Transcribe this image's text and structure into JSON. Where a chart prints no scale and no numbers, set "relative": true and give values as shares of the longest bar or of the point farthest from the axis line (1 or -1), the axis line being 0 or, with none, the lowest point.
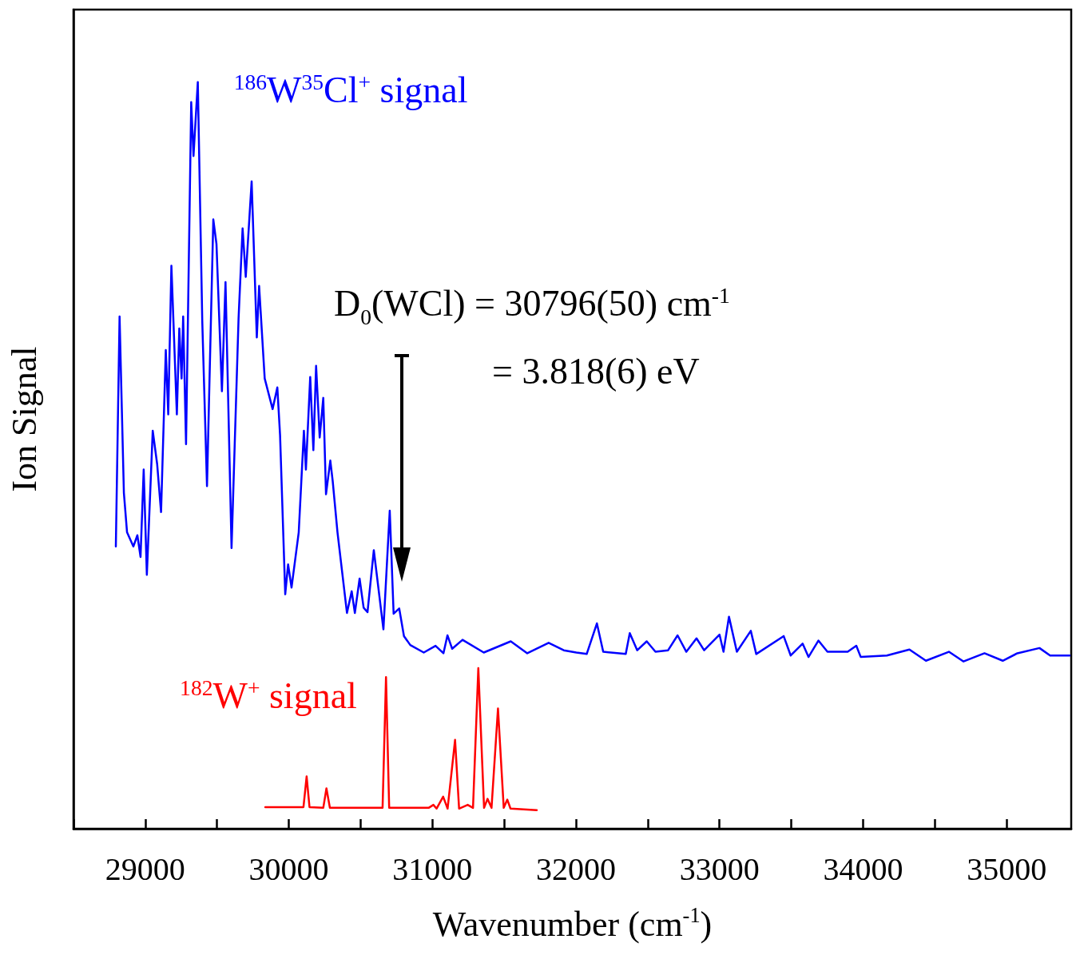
{
  "chart_data": {
    "type": "line",
    "relative": true,
    "marker": "none",
    "xlabel": "Wavenumber (cm$^{-1}$)",
    "ylabel": "Ion Signal",
    "xlim": [
      28500,
      35450
    ],
    "xticks": [
      {
        "value": 28500,
        "label": null
      },
      29000,
      {
        "value": 29500,
        "label": null
      },
      30000,
      {
        "value": 30500,
        "label": null
      },
      31000,
      {
        "value": 31500,
        "label": null
      },
      32000,
      {
        "value": 32500,
        "label": null
      },
      33000,
      {
        "value": 33500,
        "label": null
      },
      34000,
      {
        "value": 34500,
        "label": null
      },
      35000
    ],
    "annotations": [
      "D$_{0}$(WCl) =  30796(50) cm$^{-1}$",
      "=  3.818(6) eV"
    ],
    "series": [
      {
        "name": "$^{186}$W$^{35}$Cl$^{+}$ signal",
        "color": "#0000ff",
        "x": [
          28795,
          28821,
          28851,
          28873,
          28917,
          28945,
          28967,
          28989,
          29011,
          29052,
          29083,
          29110,
          29143,
          29160,
          29182,
          29220,
          29237,
          29253,
          29264,
          29284,
          29320,
          29336,
          29366,
          29397,
          29430,
          29474,
          29496,
          29534,
          29559,
          29601,
          29650,
          29678,
          29700,
          29741,
          29777,
          29793,
          29832,
          29887,
          29920,
          29939,
          29975,
          29995,
          30019,
          30069,
          30105,
          30119,
          30149,
          30171,
          30190,
          30215,
          30240,
          30259,
          30289,
          30306,
          30339,
          30405,
          30438,
          30460,
          30493,
          30521,
          30548,
          30592,
          30659,
          30703,
          30730,
          30769,
          30802,
          30846,
          30940,
          31022,
          31077,
          31105,
          31138,
          31210,
          31358,
          31546,
          31661,
          31810,
          31915,
          32003,
          32075,
          32146,
          32190,
          32347,
          32375,
          32427,
          32493,
          32554,
          32642,
          32708,
          32769,
          32840,
          32893,
          33000,
          33028,
          33066,
          33121,
          33218,
          33256,
          33447,
          33496,
          33579,
          33620,
          33689,
          33752,
          33893,
          33953,
          33984,
          34166,
          34323,
          34438,
          34598,
          34700,
          34846,
          34973,
          35075,
          35229,
          35303,
          35439
        ],
        "values": [
          0.378,
          0.686,
          0.45,
          0.397,
          0.378,
          0.393,
          0.364,
          0.481,
          0.34,
          0.533,
          0.488,
          0.424,
          0.641,
          0.555,
          0.754,
          0.555,
          0.67,
          0.603,
          0.686,
          0.515,
          0.973,
          0.901,
          1.0,
          0.68,
          0.459,
          0.816,
          0.783,
          0.586,
          0.732,
          0.376,
          0.684,
          0.804,
          0.739,
          0.867,
          0.658,
          0.727,
          0.603,
          0.562,
          0.591,
          0.527,
          0.314,
          0.354,
          0.323,
          0.397,
          0.533,
          0.481,
          0.605,
          0.507,
          0.62,
          0.524,
          0.577,
          0.448,
          0.493,
          0.465,
          0.397,
          0.289,
          0.318,
          0.289,
          0.335,
          0.296,
          0.29,
          0.373,
          0.267,
          0.426,
          0.288,
          0.295,
          0.258,
          0.246,
          0.236,
          0.245,
          0.235,
          0.259,
          0.241,
          0.253,
          0.236,
          0.251,
          0.235,
          0.249,
          0.239,
          0.236,
          0.234,
          0.275,
          0.237,
          0.234,
          0.262,
          0.239,
          0.251,
          0.237,
          0.239,
          0.259,
          0.237,
          0.255,
          0.239,
          0.26,
          0.237,
          0.284,
          0.237,
          0.265,
          0.234,
          0.258,
          0.232,
          0.248,
          0.23,
          0.252,
          0.237,
          0.237,
          0.245,
          0.23,
          0.232,
          0.24,
          0.225,
          0.237,
          0.224,
          0.235,
          0.225,
          0.235,
          0.242,
          0.232,
          0.232
        ]
      },
      {
        "name": "$^{182}$W$^{+}$ signal",
        "color": "#ff0000",
        "x": [
          29836,
          30102,
          30124,
          30144,
          30240,
          30262,
          30286,
          30653,
          30677,
          30699,
          30974,
          31007,
          31029,
          31075,
          31106,
          31158,
          31186,
          31246,
          31283,
          31320,
          31360,
          31384,
          31412,
          31457,
          31497,
          31522,
          31544,
          31727
        ],
        "values": [
          0.029,
          0.029,
          0.07,
          0.029,
          0.028,
          0.054,
          0.028,
          0.028,
          0.203,
          0.028,
          0.028,
          0.032,
          0.027,
          0.043,
          0.027,
          0.119,
          0.027,
          0.032,
          0.028,
          0.215,
          0.028,
          0.04,
          0.028,
          0.161,
          0.028,
          0.039,
          0.027,
          0.025
        ]
      }
    ]
  }
}
